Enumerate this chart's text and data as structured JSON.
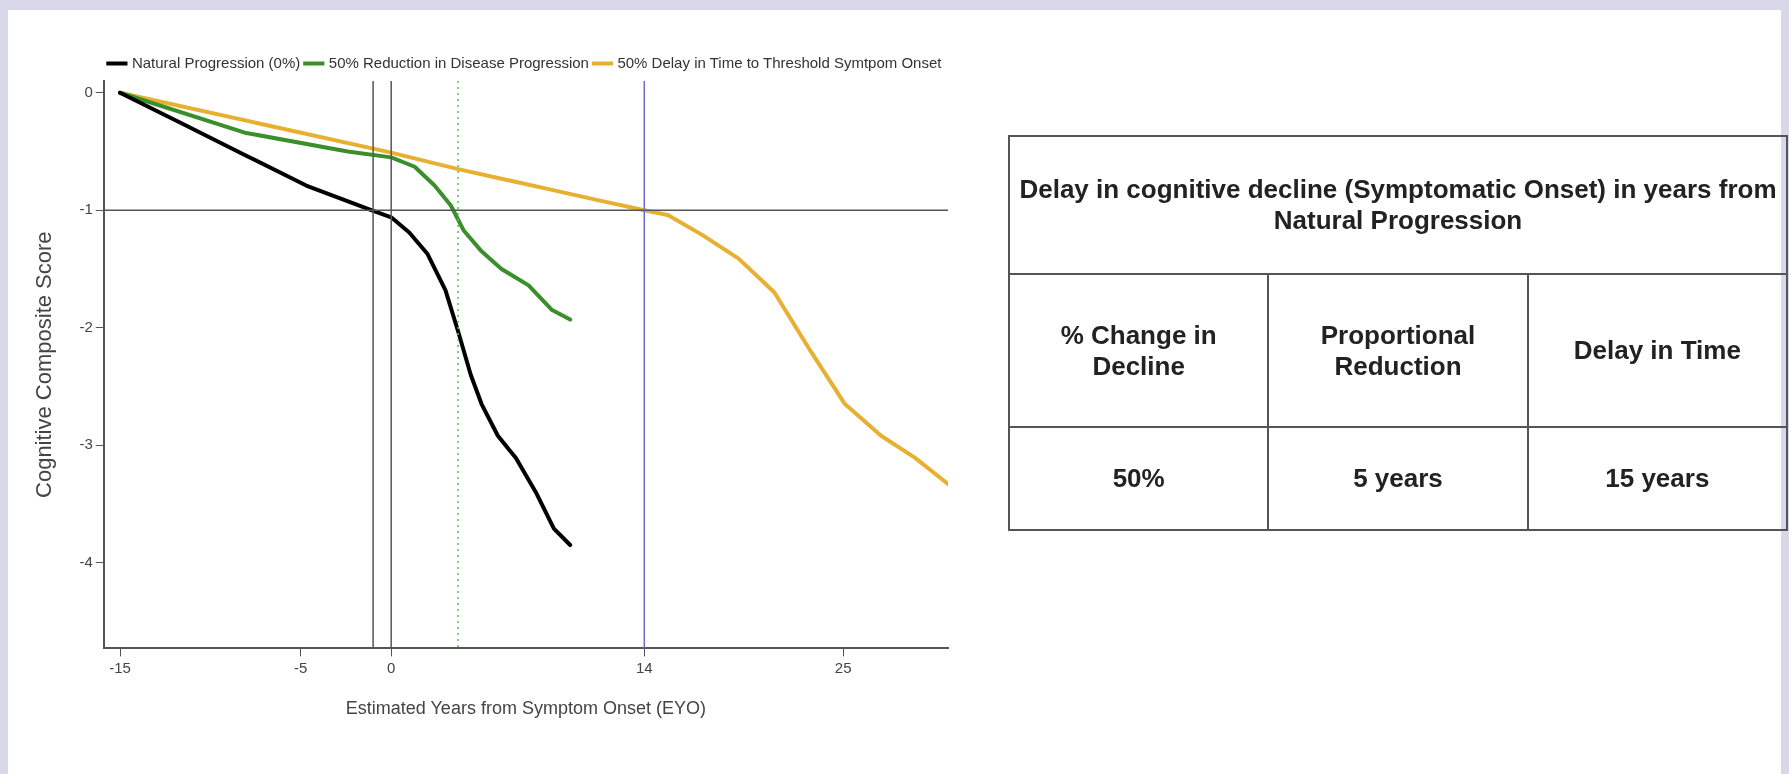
{
  "chart_data": [
    {
      "type": "line",
      "xlabel": "Estimated Years from Symptom Onset (EYO)",
      "ylabel": "Cognitive Composite Score",
      "xlim": [
        -15.9,
        30.8
      ],
      "xticks": [
        -15,
        -5,
        0,
        14,
        25
      ],
      "ylim": [
        -4.73,
        0.1
      ],
      "yticks": [
        0,
        -1,
        -2,
        -3,
        -4
      ],
      "legend": "top right",
      "grid": false,
      "marker": "none",
      "ref_lines": [
        {
          "axis": "y",
          "value": -1,
          "color": "#555555"
        },
        {
          "axis": "x",
          "value": -1,
          "color": "#555555"
        },
        {
          "axis": "x",
          "value": 0,
          "color": "#555555"
        },
        {
          "axis": "x",
          "value": 3.7,
          "color": "#5cb85c",
          "line_style": "dotted"
        },
        {
          "axis": "x",
          "value": 14,
          "color": "#6a6acf"
        }
      ],
      "series": [
        {
          "name": "Natural Progression (0%)",
          "color": "#000000",
          "x": [
            -15,
            -11.6,
            -8.1,
            -4.7,
            -1.1,
            0,
            1,
            2,
            3,
            3.7,
            4.4,
            5,
            5.9,
            6.9,
            8,
            9,
            9.9
          ],
          "values": [
            0,
            -0.26,
            -0.53,
            -0.79,
            -1,
            -1.06,
            -1.19,
            -1.37,
            -1.68,
            -2.03,
            -2.4,
            -2.65,
            -2.92,
            -3.11,
            -3.4,
            -3.71,
            -3.85
          ]
        },
        {
          "name": "50% Reduction in Disease Progression",
          "color": "#3a8f2a",
          "x": [
            -15,
            -8.1,
            -2.4,
            0,
            1.3,
            2.4,
            3.3,
            4,
            5,
            6.1,
            7.6,
            8.9,
            9.9
          ],
          "values": [
            0,
            -0.34,
            -0.5,
            -0.55,
            -0.63,
            -0.79,
            -0.96,
            -1.17,
            -1.35,
            -1.5,
            -1.64,
            -1.85,
            -1.93
          ]
        },
        {
          "name": "50% Delay in Time to Threshold Symtpom Onset",
          "color": "#e8b030",
          "x": [
            -15,
            0,
            3.7,
            8.4,
            11.3,
            14,
            15.3,
            17.2,
            19.2,
            21.2,
            23.2,
            25.1,
            27.1,
            29,
            30.8
          ],
          "values": [
            0,
            -0.51,
            -0.65,
            -0.81,
            -0.91,
            -1,
            -1.04,
            -1.21,
            -1.41,
            -1.7,
            -2.2,
            -2.65,
            -2.92,
            -3.11,
            -3.33
          ]
        }
      ]
    },
    {
      "type": "other",
      "title": "Delay in cognitive decline (Symptomatic Onset) in years from Natural Progression",
      "categories": [
        "% Change in Decline",
        "Proportional Reduction",
        "Delay in Time"
      ],
      "annotations": [
        "50%",
        "5 years",
        "15 years"
      ]
    }
  ]
}
